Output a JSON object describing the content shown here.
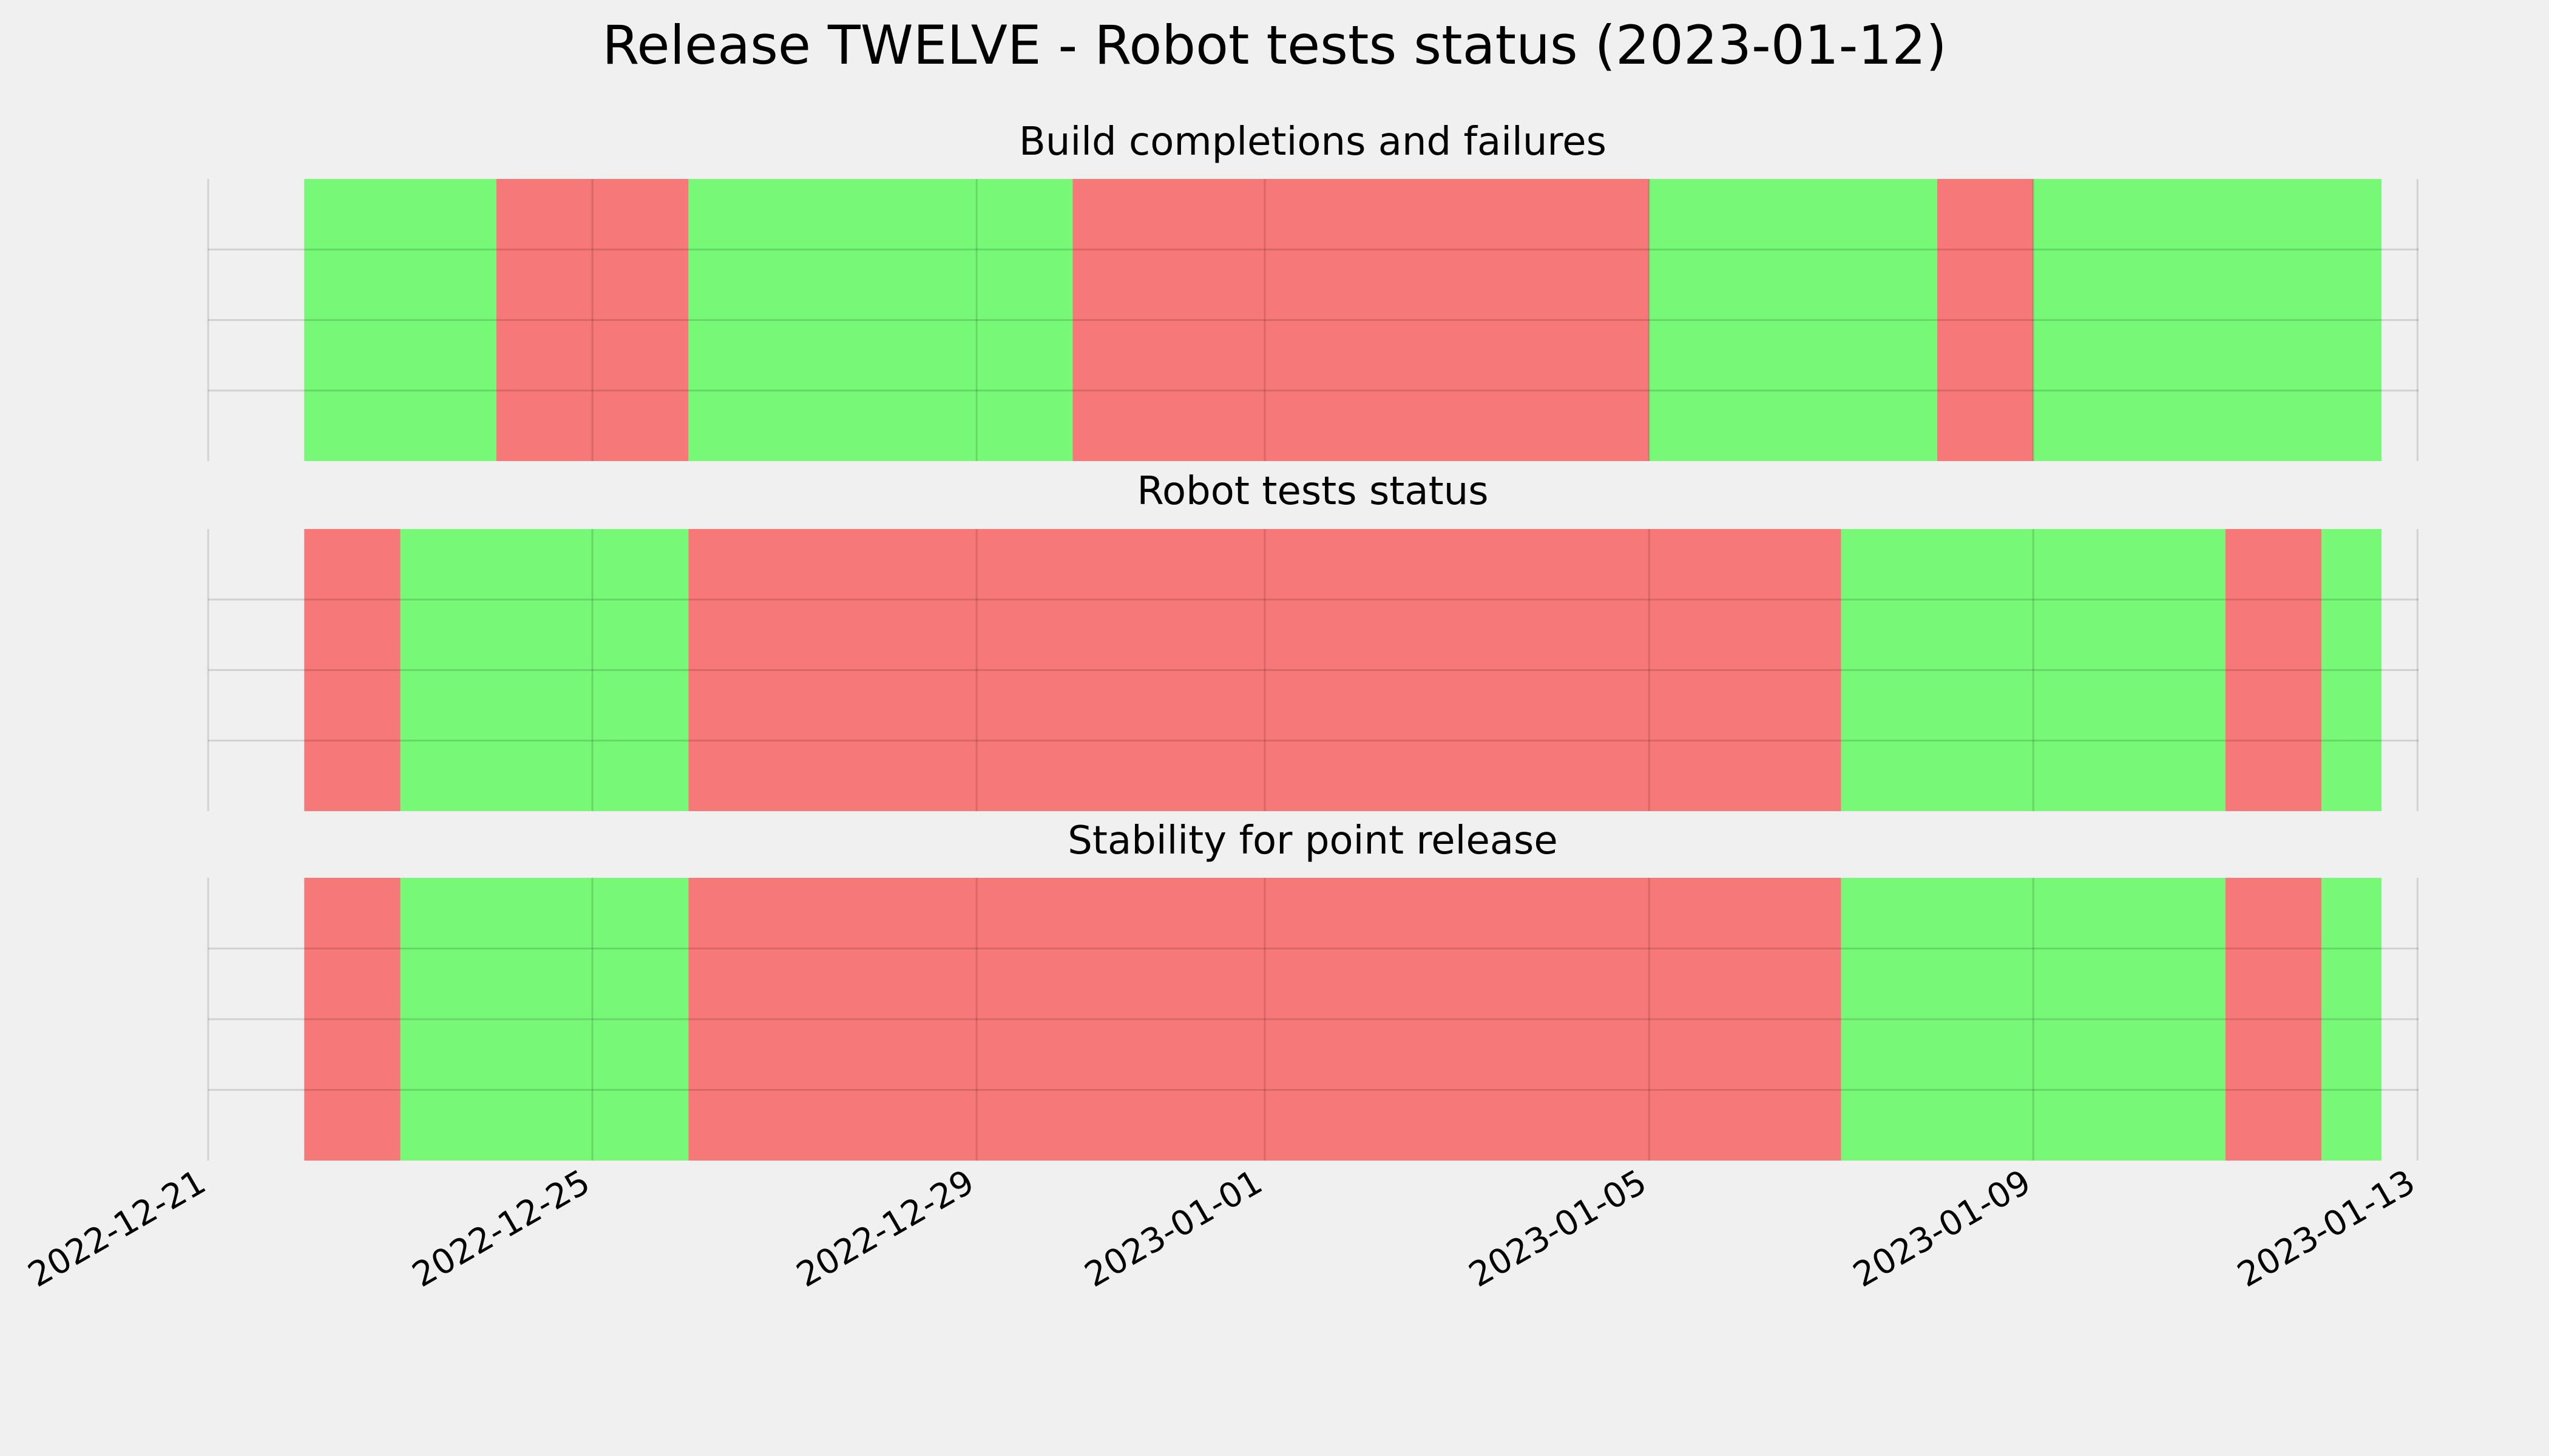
{
  "chart_data": {
    "type": "timeline",
    "title": "Release TWELVE - Robot tests status (2023-01-12)",
    "xlim": [
      "2022-12-21",
      "2023-01-13T00:15"
    ],
    "x_ticks": [
      "2022-12-21",
      "2022-12-25",
      "2022-12-29",
      "2023-01-01",
      "2023-01-05",
      "2023-01-09",
      "2023-01-13"
    ],
    "gridlines": true,
    "colors": {
      "pass": "#77f877",
      "fail": "#f77878",
      "background": "#f0f0f0",
      "grid": "#cbcbcb"
    },
    "panels": [
      {
        "title": "Build completions and failures",
        "segments": [
          {
            "start": "2022-12-22",
            "end": "2022-12-24",
            "status": "pass"
          },
          {
            "start": "2022-12-24",
            "end": "2022-12-26",
            "status": "fail"
          },
          {
            "start": "2022-12-26",
            "end": "2022-12-30",
            "status": "pass"
          },
          {
            "start": "2022-12-30",
            "end": "2023-01-05",
            "status": "fail"
          },
          {
            "start": "2023-01-05",
            "end": "2023-01-08",
            "status": "pass"
          },
          {
            "start": "2023-01-08",
            "end": "2023-01-09",
            "status": "fail"
          },
          {
            "start": "2023-01-09",
            "end": "2023-01-12T15:00",
            "status": "pass"
          }
        ]
      },
      {
        "title": "Robot tests status",
        "segments": [
          {
            "start": "2022-12-22",
            "end": "2022-12-23",
            "status": "fail"
          },
          {
            "start": "2022-12-23",
            "end": "2022-12-26",
            "status": "pass"
          },
          {
            "start": "2022-12-26",
            "end": "2023-01-07",
            "status": "fail"
          },
          {
            "start": "2023-01-07",
            "end": "2023-01-11",
            "status": "pass"
          },
          {
            "start": "2023-01-11",
            "end": "2023-01-12",
            "status": "fail"
          },
          {
            "start": "2023-01-12",
            "end": "2023-01-12T15:00",
            "status": "pass"
          }
        ]
      },
      {
        "title": "Stability for point release",
        "segments": [
          {
            "start": "2022-12-22",
            "end": "2022-12-23",
            "status": "fail"
          },
          {
            "start": "2022-12-23",
            "end": "2022-12-26",
            "status": "pass"
          },
          {
            "start": "2022-12-26",
            "end": "2023-01-07",
            "status": "fail"
          },
          {
            "start": "2023-01-07",
            "end": "2023-01-11",
            "status": "pass"
          },
          {
            "start": "2023-01-11",
            "end": "2023-01-12",
            "status": "fail"
          },
          {
            "start": "2023-01-12",
            "end": "2023-01-12T15:00",
            "status": "pass"
          }
        ]
      }
    ]
  }
}
